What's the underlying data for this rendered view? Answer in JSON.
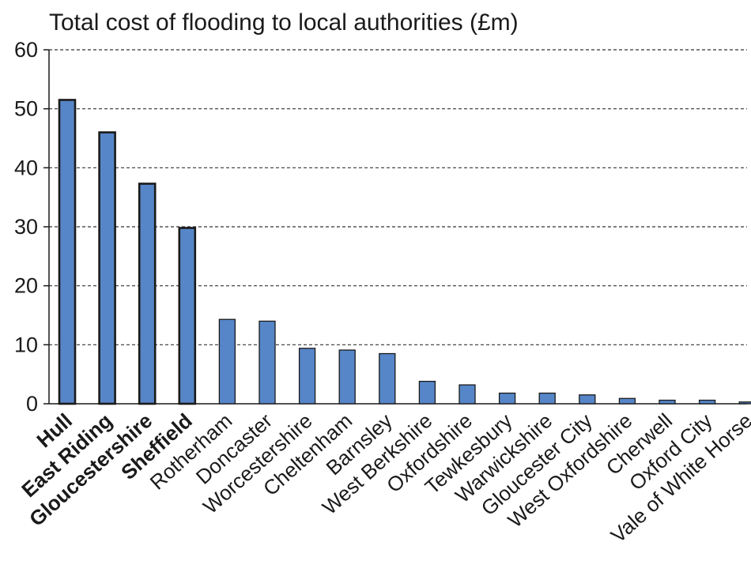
{
  "chart_data": {
    "type": "bar",
    "title": "Total cost of flooding to local authorities (£m)",
    "xlabel": "",
    "ylabel": "",
    "ylim": [
      0,
      60
    ],
    "yticks": [
      0,
      10,
      20,
      30,
      40,
      50,
      60
    ],
    "grid": true,
    "grid_style": "dashed",
    "bar_color": "#5686c8",
    "bar_edge_color": "#1a1a1a",
    "highlighted_categories": [
      "Hull",
      "East Riding",
      "Gloucestershire",
      "Sheffield"
    ],
    "categories": [
      "Hull",
      "East Riding",
      "Gloucestershire",
      "Sheffield",
      "Rotherham",
      "Doncaster",
      "Worcestershire",
      "Cheltenham",
      "Barnsley",
      "West Berkshire",
      "Oxfordshire",
      "Tewkesbury",
      "Warwickshire",
      "Gloucester City",
      "West Oxfordshire",
      "Cherwell",
      "Oxford City",
      "Vale of White Horse"
    ],
    "values": [
      51.5,
      46,
      37.3,
      29.8,
      14.3,
      14,
      9.4,
      9.1,
      8.5,
      3.8,
      3.2,
      1.8,
      1.8,
      1.5,
      0.9,
      0.6,
      0.6,
      0.3
    ]
  }
}
